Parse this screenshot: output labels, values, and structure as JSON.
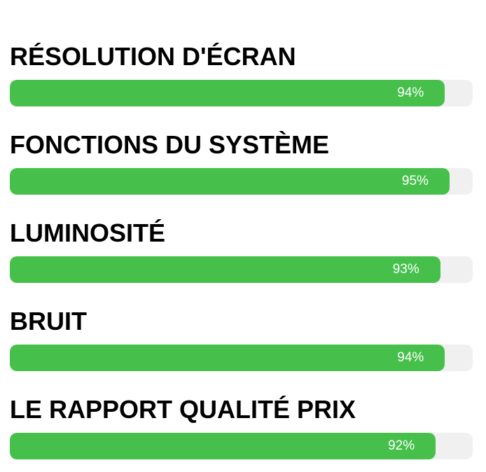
{
  "chart_data": {
    "type": "bar",
    "orientation": "horizontal",
    "title": "",
    "categories": [
      "RÉSOLUTION D'ÉCRAN",
      "FONCTIONS DU SYSTÈME",
      "LUMINOSITÉ",
      "BRUIT",
      "LE RAPPORT QUALITÉ PRIX"
    ],
    "values": [
      94,
      95,
      93,
      94,
      92
    ],
    "value_labels": [
      "94%",
      "95%",
      "93%",
      "94%",
      "92%"
    ],
    "xlim": [
      0,
      100
    ],
    "grid": false,
    "legend": false,
    "bar_color": "#46c04b",
    "track_color": "#f0f0f0",
    "label_color": "#000000",
    "value_text_color": "#ffffff",
    "background_color": "#ffffff"
  }
}
